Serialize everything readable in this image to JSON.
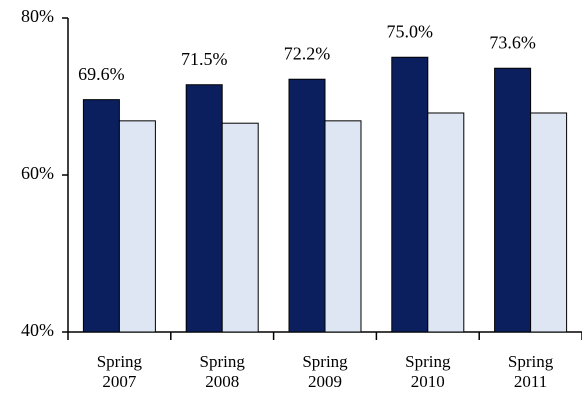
{
  "chart_data": {
    "type": "bar",
    "categories": [
      "Spring 2007",
      "Spring 2008",
      "Spring 2009",
      "Spring 2010",
      "Spring 2011"
    ],
    "series": [
      {
        "color": "#0b1f5e",
        "values": [
          69.6,
          71.5,
          72.2,
          75.0,
          73.6
        ],
        "value_labels": [
          "69.6%",
          "71.5%",
          "72.2%",
          "75.0%",
          "73.6%"
        ]
      },
      {
        "color": "#dde6f2",
        "values": [
          66.9,
          66.6,
          66.9,
          67.9,
          67.9
        ]
      }
    ],
    "ylim": [
      40,
      80
    ],
    "yticks": [
      {
        "value": 40,
        "label": "40%"
      },
      {
        "value": 60,
        "label": "60%"
      },
      {
        "value": 80,
        "label": "80%"
      }
    ]
  }
}
